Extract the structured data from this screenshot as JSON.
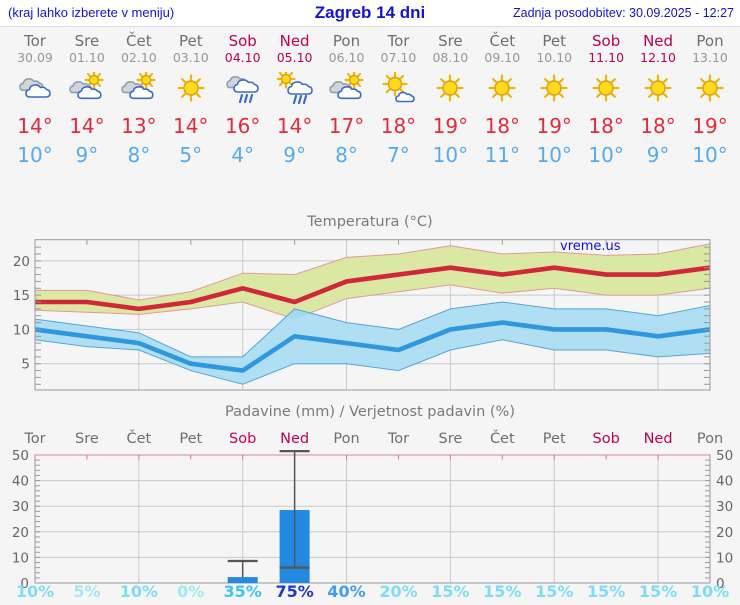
{
  "header": {
    "hint": "(kraj lahko izberete v meniju)",
    "title": "Zagreb 14 dni",
    "updated": "Zadnja posodobitev: 30.09.2025 - 12:27"
  },
  "watermark": "vreme.us",
  "forecast": {
    "days": [
      {
        "name": "Tor",
        "date": "30.09",
        "weekend": false,
        "icon": "cloudy",
        "tmax": "14°",
        "tmin": "10°",
        "pop": "10%",
        "pop_color": "#7fdcf2"
      },
      {
        "name": "Sre",
        "date": "01.10",
        "weekend": false,
        "icon": "partly",
        "tmax": "14°",
        "tmin": "9°",
        "pop": "5%",
        "pop_color": "#a0e8f6"
      },
      {
        "name": "Čet",
        "date": "02.10",
        "weekend": false,
        "icon": "partly",
        "tmax": "13°",
        "tmin": "8°",
        "pop": "10%",
        "pop_color": "#7fdcf2"
      },
      {
        "name": "Pet",
        "date": "03.10",
        "weekend": false,
        "icon": "sunny",
        "tmax": "14°",
        "tmin": "5°",
        "pop": "0%",
        "pop_color": "#a0e8f6"
      },
      {
        "name": "Sob",
        "date": "04.10",
        "weekend": true,
        "icon": "rain",
        "tmax": "16°",
        "tmin": "4°",
        "pop": "35%",
        "pop_color": "#3cc6ee"
      },
      {
        "name": "Ned",
        "date": "05.10",
        "weekend": true,
        "icon": "sunrain",
        "tmax": "14°",
        "tmin": "9°",
        "pop": "75%",
        "pop_color": "#2336cf"
      },
      {
        "name": "Pon",
        "date": "06.10",
        "weekend": false,
        "icon": "partly",
        "tmax": "17°",
        "tmin": "8°",
        "pop": "40%",
        "pop_color": "#3f9fee"
      },
      {
        "name": "Tor",
        "date": "07.10",
        "weekend": false,
        "icon": "mostlysunny",
        "tmax": "18°",
        "tmin": "7°",
        "pop": "20%",
        "pop_color": "#7fdcf2"
      },
      {
        "name": "Sre",
        "date": "08.10",
        "weekend": false,
        "icon": "sunny",
        "tmax": "19°",
        "tmin": "10°",
        "pop": "15%",
        "pop_color": "#7fdcf2"
      },
      {
        "name": "Čet",
        "date": "09.10",
        "weekend": false,
        "icon": "sunny",
        "tmax": "18°",
        "tmin": "11°",
        "pop": "15%",
        "pop_color": "#7fdcf2"
      },
      {
        "name": "Pet",
        "date": "10.10",
        "weekend": false,
        "icon": "sunny",
        "tmax": "19°",
        "tmin": "10°",
        "pop": "15%",
        "pop_color": "#7fdcf2"
      },
      {
        "name": "Sob",
        "date": "11.10",
        "weekend": true,
        "icon": "sunny",
        "tmax": "18°",
        "tmin": "10°",
        "pop": "15%",
        "pop_color": "#7fdcf2"
      },
      {
        "name": "Ned",
        "date": "12.10",
        "weekend": true,
        "icon": "sunny",
        "tmax": "18°",
        "tmin": "9°",
        "pop": "15%",
        "pop_color": "#7fdcf2"
      },
      {
        "name": "Pon",
        "date": "13.10",
        "weekend": false,
        "icon": "sunny",
        "tmax": "19°",
        "tmin": "10°",
        "pop": "10%",
        "pop_color": "#7fdcf2"
      }
    ]
  },
  "colors": {
    "page_bg": "#f5f5f5",
    "header_bg": "#ffffff",
    "link_blue": "#1414cc",
    "day_gray": "#6e6e6e",
    "date_gray": "#979797",
    "weekend": "#c00050",
    "tmax_red": "#e22b3e",
    "tmin_blue": "#55aaee",
    "grid": "#c9c9c9",
    "frame": "#999999",
    "axis_label": "#666666",
    "title_gray": "#7a7a7a",
    "band_max_fill": "#dbe8a4",
    "band_max_edge": "#e49898",
    "band_min_fill": "#a9dcf2",
    "band_min_edge": "#55a5d8",
    "line_max": "#cf2838",
    "line_min": "#2e97dd",
    "overlap": "#5abf68",
    "bar_blue": "#2388e0",
    "whisker": "#555555",
    "pink_tick": "#e0708f",
    "pink_top": "#dd8895",
    "watermark_blue": "#1010e8"
  },
  "chart_data": [
    {
      "type": "line",
      "title": "Temperatura (°C)",
      "categories": [
        "Tor",
        "Sre",
        "Čet",
        "Pet",
        "Sob",
        "Ned",
        "Pon",
        "Tor",
        "Sre",
        "Čet",
        "Pet",
        "Sob",
        "Ned",
        "Pon"
      ],
      "series": [
        {
          "name": "max",
          "values": [
            14,
            14,
            13,
            14,
            16,
            14,
            17,
            18,
            19,
            18,
            19,
            18,
            18,
            19
          ]
        },
        {
          "name": "max_upper",
          "values": [
            15.7,
            15.7,
            14.3,
            15.5,
            18.2,
            18,
            20.5,
            21,
            22.2,
            21,
            21.3,
            20.8,
            21,
            22.5
          ]
        },
        {
          "name": "max_lower",
          "values": [
            12.8,
            12.5,
            12.2,
            13,
            14,
            11.5,
            14.5,
            15.5,
            16.5,
            15.3,
            16,
            15,
            15,
            16
          ]
        },
        {
          "name": "min",
          "values": [
            10,
            9,
            8,
            5,
            4,
            9,
            8,
            7,
            10,
            11,
            10,
            10,
            9,
            10
          ]
        },
        {
          "name": "min_upper",
          "values": [
            11.5,
            10.5,
            9.5,
            6,
            6,
            13,
            11,
            10,
            13,
            14,
            13,
            13,
            12,
            13.5
          ]
        },
        {
          "name": "min_lower",
          "values": [
            8.5,
            7.5,
            7,
            4,
            2,
            5,
            5,
            4,
            7,
            8.5,
            7,
            7,
            6,
            6.5
          ]
        }
      ],
      "ylim": [
        0,
        23
      ],
      "yticks": [
        5,
        10,
        15,
        20
      ],
      "grid": true,
      "watermark": "vreme.us"
    },
    {
      "type": "bar",
      "title": "Padavine (mm) / Verjetnost padavin (%)",
      "categories": [
        "Tor",
        "Sre",
        "Čet",
        "Pet",
        "Sob",
        "Ned",
        "Pon",
        "Tor",
        "Sre",
        "Čet",
        "Pet",
        "Sob",
        "Ned",
        "Pon"
      ],
      "values_mm": [
        0,
        0,
        0,
        0,
        2.3,
        28.5,
        0,
        0,
        0,
        0,
        0,
        0,
        0,
        0
      ],
      "bars": [
        {
          "day": 4,
          "mm": 2.3,
          "lo": 2.3,
          "hi": 8.6
        },
        {
          "day": 5,
          "mm": 28.5,
          "lo": 6,
          "hi": 51.5
        }
      ],
      "probabilities_pct": [
        10,
        5,
        10,
        0,
        35,
        75,
        40,
        20,
        15,
        15,
        15,
        15,
        15,
        10
      ],
      "ylim": [
        0,
        50
      ],
      "yticks": [
        0,
        10,
        20,
        30,
        40,
        50
      ],
      "grid": true
    }
  ]
}
